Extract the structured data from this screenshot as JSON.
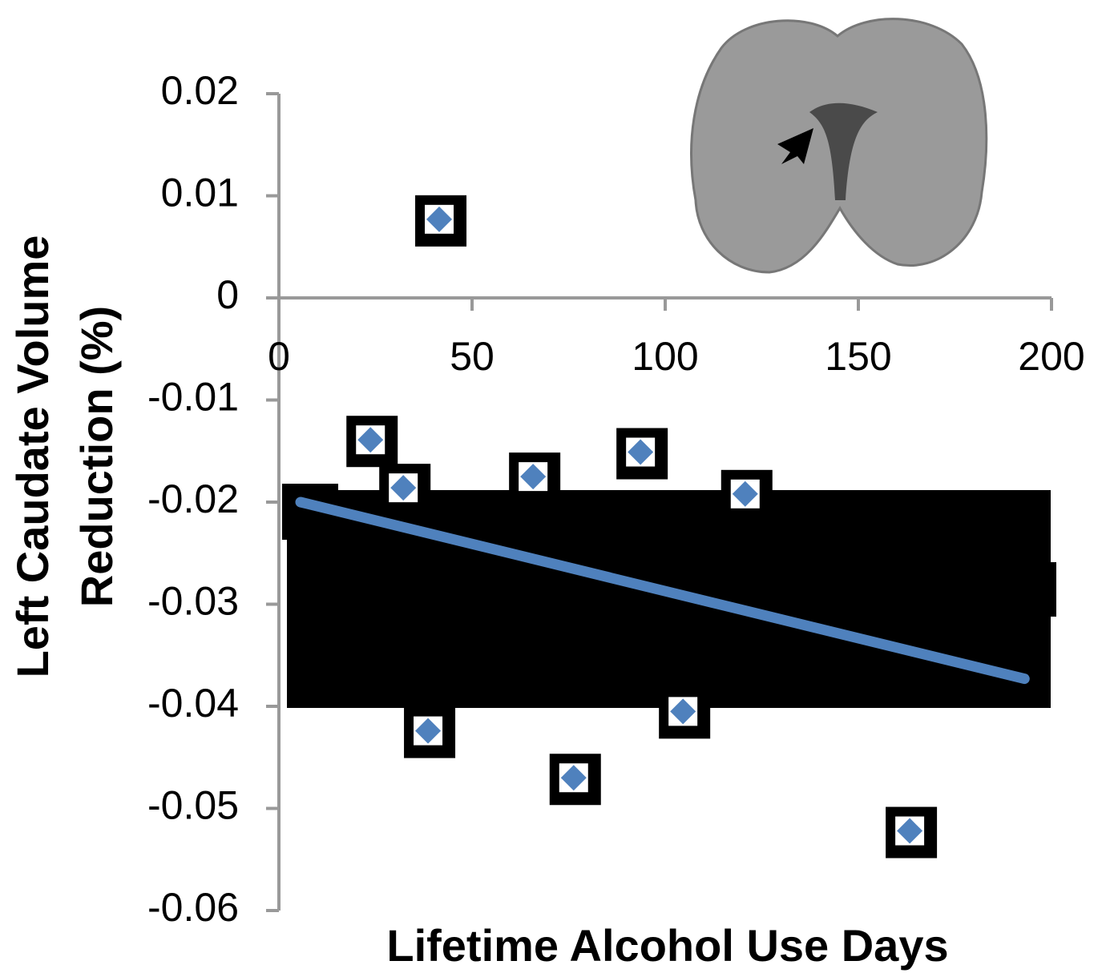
{
  "chart_data": {
    "type": "scatter",
    "xlabel": "Lifetime Alcohol Use Days",
    "ylabel": [
      "Left Caudate Volume",
      "Reduction (%)"
    ],
    "xlim": [
      0,
      200
    ],
    "xticks": [
      0,
      50,
      100,
      150,
      200
    ],
    "ylim": [
      -0.06,
      0.02
    ],
    "yticks": [
      0.02,
      0.01,
      0,
      -0.01,
      -0.02,
      -0.03,
      -0.04,
      -0.05,
      -0.06
    ],
    "series": [
      {
        "color": "#4f81bd",
        "mode": "markers",
        "x": [
          41.5,
          23.7,
          32.2,
          65.8,
          93.6,
          120.7,
          38.6,
          76.3,
          104.6,
          163.3
        ],
        "values": [
          0.0077,
          -0.0139,
          -0.0186,
          -0.0175,
          -0.0151,
          -0.0192,
          -0.0424,
          -0.047,
          -0.0405,
          -0.0522
        ]
      },
      {
        "color": "#4f81bd",
        "mode": "line",
        "x": [
          5.6,
          193
        ],
        "values": [
          -0.02,
          -0.0373
        ]
      }
    ]
  }
}
